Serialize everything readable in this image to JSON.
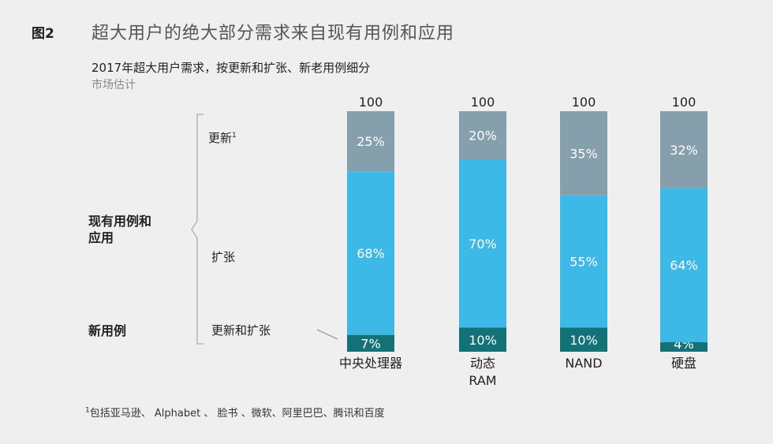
{
  "header": {
    "figure_number": "图2",
    "title": "超大用户的绝大部分需求来自现有用例和应用",
    "subtitle": "2017年超大用户需求，按更新和扩张、新老用例细分",
    "subnote": "市场估计"
  },
  "legend": {
    "replacement": "更新",
    "replacement_sup": "1",
    "expansion": "扩张",
    "new_label": "更新和扩张",
    "group_existing_line1": "现有用例和",
    "group_existing_line2": "应用",
    "group_new": "新用例"
  },
  "footnote": {
    "sup": "1",
    "text": "包括亚马逊、 Alphabet 、 脸书 、微软、阿里巴巴、腾讯和百度"
  },
  "colors": {
    "replacement": "#869fac",
    "expansion": "#3db9e8",
    "new": "#127276",
    "background": "#efefef"
  },
  "chart_data": {
    "type": "bar",
    "stacked": true,
    "categories": [
      "中央处理器",
      "动态\nRAM",
      "NAND",
      "硬盘"
    ],
    "totals": [
      "100",
      "100",
      "100",
      "100"
    ],
    "series": [
      {
        "key": "new",
        "values": [
          7,
          10,
          10,
          4
        ],
        "labels": [
          "7%",
          "10%",
          "10%",
          "4%"
        ]
      },
      {
        "key": "expansion",
        "values": [
          68,
          70,
          55,
          64
        ],
        "labels": [
          "68%",
          "70%",
          "55%",
          "64%"
        ]
      },
      {
        "key": "replacement",
        "values": [
          25,
          20,
          35,
          32
        ],
        "labels": [
          "25%",
          "20%",
          "35%",
          "32%"
        ]
      }
    ],
    "ylim": [
      0,
      100
    ]
  }
}
